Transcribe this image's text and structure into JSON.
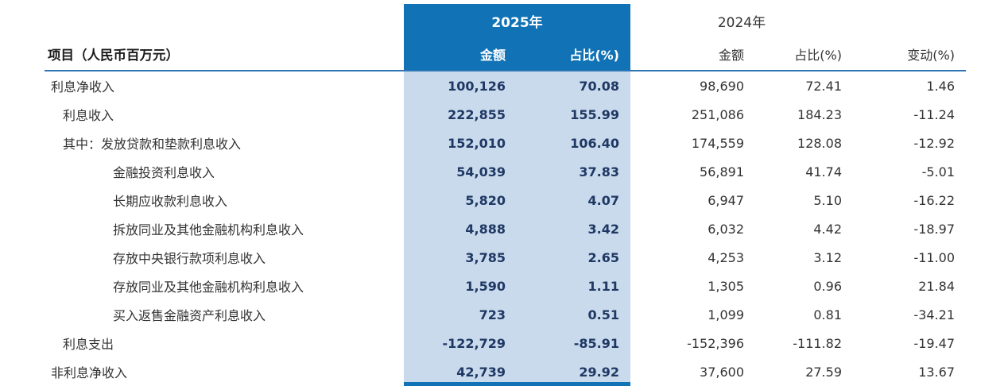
{
  "table": {
    "header": {
      "item_label": "项目（人民币百万元）",
      "group_2025": "2025年",
      "group_2024": "2024年",
      "col_amount_2025": "金额",
      "col_ratio_2025": "占比(%)",
      "col_amount_2024": "金额",
      "col_ratio_2024": "占比(%)",
      "col_change": "变动(%)"
    },
    "rows": [
      {
        "item": "利息净收入",
        "amount_2025": "100,126",
        "ratio_2025": "70.08",
        "amount_2024": "98,690",
        "ratio_2024": "72.41",
        "change": "1.46"
      },
      {
        "item": "利息收入",
        "amount_2025": "222,855",
        "ratio_2025": "155.99",
        "amount_2024": "251,086",
        "ratio_2024": "184.23",
        "change": "-11.24"
      },
      {
        "item": "其中：发放贷款和垫款利息收入",
        "amount_2025": "152,010",
        "ratio_2025": "106.40",
        "amount_2024": "174,559",
        "ratio_2024": "128.08",
        "change": "-12.92"
      },
      {
        "item": "金融投资利息收入",
        "amount_2025": "54,039",
        "ratio_2025": "37.83",
        "amount_2024": "56,891",
        "ratio_2024": "41.74",
        "change": "-5.01"
      },
      {
        "item": "长期应收款利息收入",
        "amount_2025": "5,820",
        "ratio_2025": "4.07",
        "amount_2024": "6,947",
        "ratio_2024": "5.10",
        "change": "-16.22"
      },
      {
        "item": "拆放同业及其他金融机构利息收入",
        "amount_2025": "4,888",
        "ratio_2025": "3.42",
        "amount_2024": "6,032",
        "ratio_2024": "4.42",
        "change": "-18.97"
      },
      {
        "item": "存放中央银行款项利息收入",
        "amount_2025": "3,785",
        "ratio_2025": "2.65",
        "amount_2024": "4,253",
        "ratio_2024": "3.12",
        "change": "-11.00"
      },
      {
        "item": "存放同业及其他金融机构利息收入",
        "amount_2025": "1,590",
        "ratio_2025": "1.11",
        "amount_2024": "1,305",
        "ratio_2024": "0.96",
        "change": "21.84"
      },
      {
        "item": "买入返售金融资产利息收入",
        "amount_2025": "723",
        "ratio_2025": "0.51",
        "amount_2024": "1,099",
        "ratio_2024": "0.81",
        "change": "-34.21"
      },
      {
        "item": "利息支出",
        "amount_2025": "-122,729",
        "ratio_2025": "-85.91",
        "amount_2024": "-152,396",
        "ratio_2024": "-111.82",
        "change": "-19.47"
      },
      {
        "item": "非利息净收入",
        "amount_2025": "42,739",
        "ratio_2025": "29.92",
        "amount_2024": "37,600",
        "ratio_2024": "27.59",
        "change": "13.67"
      }
    ],
    "colors": {
      "header_blue": "#1173b6",
      "band_light_blue": "#c8daeb",
      "highlight_text": "#1f3864",
      "separator_blue": "#2f76b7"
    }
  }
}
